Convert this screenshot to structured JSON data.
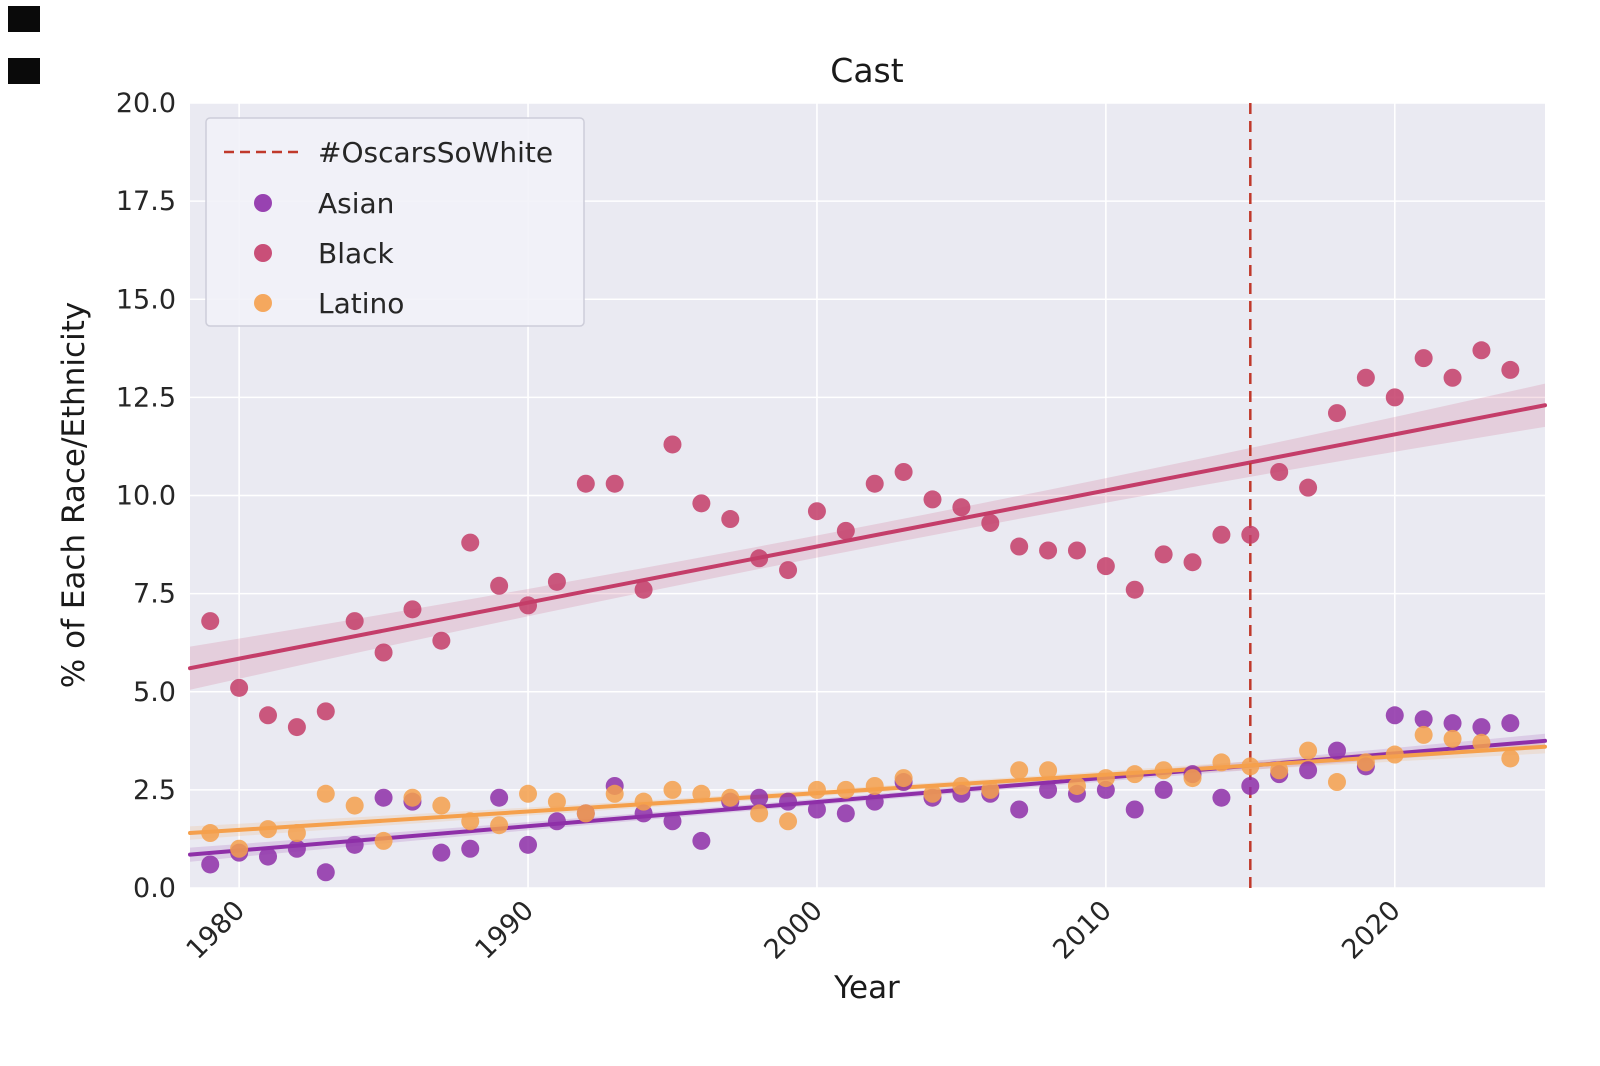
{
  "chart_data": {
    "type": "scatter",
    "title": "Cast",
    "xlabel": "Year",
    "ylabel": "% of Each Race/Ethnicity",
    "xlim": [
      1978.3,
      2025.2
    ],
    "ylim": [
      0,
      20
    ],
    "x_ticks": [
      1980,
      1990,
      2000,
      2010,
      2020
    ],
    "x_tick_labels": [
      "1980",
      "1990",
      "2000",
      "2010",
      "2020"
    ],
    "y_ticks": [
      0,
      2.5,
      5,
      7.5,
      10,
      12.5,
      15,
      17.5,
      20
    ],
    "y_tick_labels": [
      "0.0",
      "2.5",
      "5.0",
      "7.5",
      "10.0",
      "12.5",
      "15.0",
      "17.5",
      "20.0"
    ],
    "grid": true,
    "plot_bg": "#eaeaf2",
    "grid_color": "#ffffff",
    "text_color": "#262626",
    "legend_position": "upper left",
    "annotation_line": {
      "label": "#OscarsSoWhite",
      "x": 2015,
      "color": "#c0392b",
      "style": "dashed"
    },
    "series": [
      {
        "name": "Asian",
        "color": "#8e2fa8",
        "x": [
          1979,
          1980,
          1981,
          1982,
          1983,
          1984,
          1985,
          1986,
          1987,
          1988,
          1989,
          1990,
          1991,
          1992,
          1993,
          1994,
          1995,
          1996,
          1997,
          1998,
          1999,
          2000,
          2001,
          2002,
          2003,
          2004,
          2005,
          2006,
          2007,
          2008,
          2009,
          2010,
          2011,
          2012,
          2013,
          2014,
          2015,
          2016,
          2017,
          2018,
          2019,
          2020,
          2021,
          2022,
          2023,
          2024
        ],
        "y": [
          0.6,
          0.9,
          0.8,
          1.0,
          0.4,
          1.1,
          2.3,
          2.2,
          0.9,
          1.0,
          2.3,
          1.1,
          1.7,
          1.9,
          2.6,
          1.9,
          1.7,
          1.2,
          2.2,
          2.3,
          2.2,
          2.0,
          1.9,
          2.2,
          2.7,
          2.3,
          2.4,
          2.4,
          2.0,
          2.5,
          2.4,
          2.5,
          2.0,
          2.5,
          2.9,
          2.3,
          2.6,
          2.9,
          3.0,
          3.5,
          3.1,
          4.4,
          4.3,
          4.2,
          4.1,
          4.2
        ],
        "trend": {
          "x_start": 1978.3,
          "x_end": 2025.2,
          "y_start": 0.85,
          "y_end": 3.75,
          "ci_end": 0.18,
          "ci_mid": 0.08
        }
      },
      {
        "name": "Black",
        "color": "#c43d69",
        "x": [
          1979,
          1980,
          1981,
          1982,
          1983,
          1984,
          1985,
          1986,
          1987,
          1988,
          1989,
          1990,
          1991,
          1992,
          1993,
          1994,
          1995,
          1996,
          1997,
          1998,
          1999,
          2000,
          2001,
          2002,
          2003,
          2004,
          2005,
          2006,
          2007,
          2008,
          2009,
          2010,
          2011,
          2012,
          2013,
          2014,
          2015,
          2016,
          2017,
          2018,
          2019,
          2020,
          2021,
          2022,
          2023,
          2024
        ],
        "y": [
          6.8,
          5.1,
          4.4,
          4.1,
          4.5,
          6.8,
          6.0,
          7.1,
          6.3,
          8.8,
          7.7,
          7.2,
          7.8,
          10.3,
          10.3,
          7.6,
          11.3,
          9.8,
          9.4,
          8.4,
          8.1,
          9.6,
          9.1,
          10.3,
          10.6,
          9.9,
          9.7,
          9.3,
          8.7,
          8.6,
          8.6,
          8.2,
          7.6,
          8.5,
          8.3,
          9.0,
          9.0,
          10.6,
          10.2,
          12.1,
          13.0,
          12.5,
          13.5,
          13.0,
          13.7,
          13.2
        ],
        "trend": {
          "x_start": 1978.3,
          "x_end": 2025.2,
          "y_start": 5.6,
          "y_end": 12.3,
          "ci_end": 0.55,
          "ci_mid": 0.28
        }
      },
      {
        "name": "Latino",
        "color": "#f5a04c",
        "x": [
          1979,
          1980,
          1981,
          1982,
          1983,
          1984,
          1985,
          1986,
          1987,
          1988,
          1989,
          1990,
          1991,
          1992,
          1993,
          1994,
          1995,
          1996,
          1997,
          1998,
          1999,
          2000,
          2001,
          2002,
          2003,
          2004,
          2005,
          2006,
          2007,
          2008,
          2009,
          2010,
          2011,
          2012,
          2013,
          2014,
          2015,
          2016,
          2017,
          2018,
          2019,
          2020,
          2021,
          2022,
          2023,
          2024
        ],
        "y": [
          1.4,
          1.0,
          1.5,
          1.4,
          2.4,
          2.1,
          1.2,
          2.3,
          2.1,
          1.7,
          1.6,
          2.4,
          2.2,
          1.9,
          2.4,
          2.2,
          2.5,
          2.4,
          2.3,
          1.9,
          1.7,
          2.5,
          2.5,
          2.6,
          2.8,
          2.4,
          2.6,
          2.5,
          3.0,
          3.0,
          2.6,
          2.8,
          2.9,
          3.0,
          2.8,
          3.2,
          3.1,
          3.0,
          3.5,
          2.7,
          3.2,
          3.4,
          3.9,
          3.8,
          3.7,
          3.3
        ],
        "trend": {
          "x_start": 1978.3,
          "x_end": 2025.2,
          "y_start": 1.4,
          "y_end": 3.6,
          "ci_end": 0.17,
          "ci_mid": 0.08
        }
      }
    ]
  }
}
